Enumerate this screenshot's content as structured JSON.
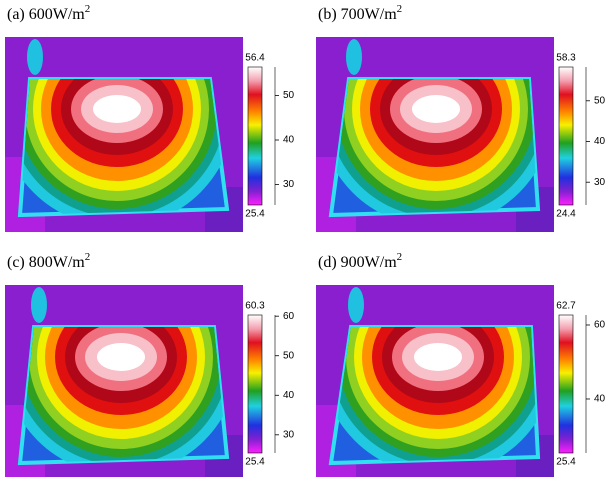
{
  "panels": [
    {
      "caption": "(a) 600W/m",
      "exponent": "2",
      "colorbar": {
        "max": 56.4,
        "min": 25.4,
        "ticks": [
          30,
          40,
          50
        ]
      }
    },
    {
      "caption": "(b) 700W/m",
      "exponent": "2",
      "colorbar": {
        "max": 58.3,
        "min": 24.4,
        "ticks": [
          30,
          40,
          50
        ]
      }
    },
    {
      "caption": "(c) 800W/m",
      "exponent": "2",
      "colorbar": {
        "max": 60.3,
        "min": 25.4,
        "ticks": [
          30,
          40,
          50,
          60
        ]
      }
    },
    {
      "caption": "(d) 900W/m",
      "exponent": "2",
      "colorbar": {
        "max": 62.7,
        "min": 25.4,
        "ticks": [
          40,
          60
        ]
      }
    }
  ]
}
